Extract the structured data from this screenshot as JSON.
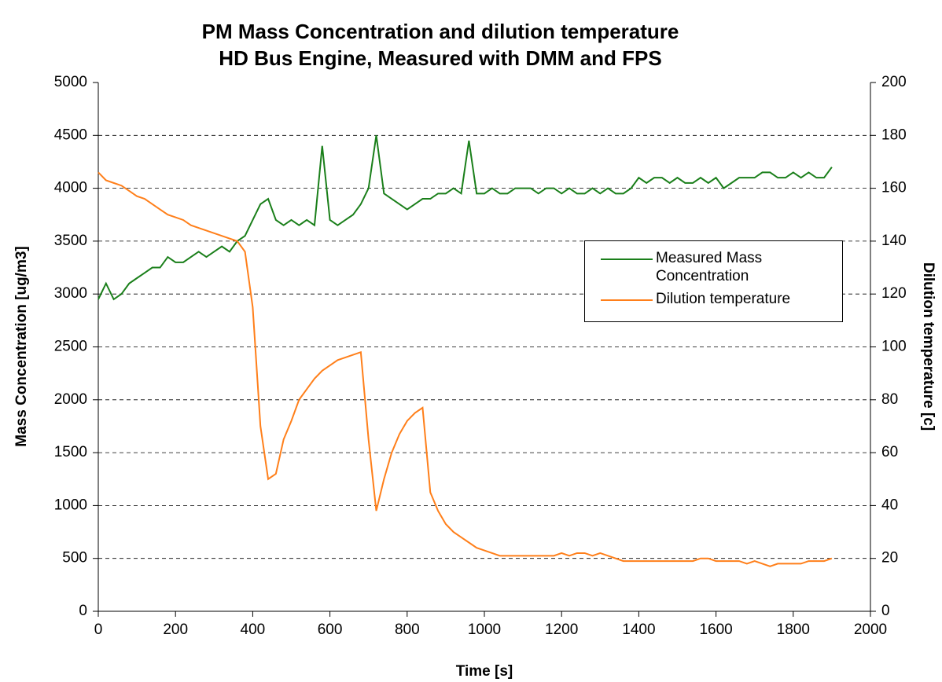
{
  "chart_data": {
    "type": "line",
    "title": "PM Mass Concentration and dilution temperature",
    "subtitle": "HD Bus Engine, Measured with DMM and FPS",
    "xlabel": "Time [s]",
    "ylabel": "Mass Concentration [ug/m3]",
    "y2label": "Dilution temperature [c]",
    "x": [
      0,
      20,
      40,
      60,
      80,
      100,
      120,
      140,
      160,
      180,
      200,
      220,
      240,
      260,
      280,
      300,
      320,
      340,
      360,
      380,
      400,
      420,
      440,
      460,
      480,
      500,
      520,
      540,
      560,
      580,
      600,
      620,
      640,
      660,
      680,
      700,
      720,
      740,
      760,
      780,
      800,
      820,
      840,
      860,
      880,
      900,
      920,
      940,
      960,
      980,
      1000,
      1020,
      1040,
      1060,
      1080,
      1100,
      1120,
      1140,
      1160,
      1180,
      1200,
      1220,
      1240,
      1260,
      1280,
      1300,
      1320,
      1340,
      1360,
      1380,
      1400,
      1420,
      1440,
      1460,
      1480,
      1500,
      1520,
      1540,
      1560,
      1580,
      1600,
      1620,
      1640,
      1660,
      1680,
      1700,
      1720,
      1740,
      1760,
      1780,
      1800,
      1820,
      1840,
      1860,
      1880,
      1900
    ],
    "series": [
      {
        "name": "Measured Mass Concentration",
        "color": "#1a7f1a",
        "values": [
          2950,
          3100,
          2950,
          3000,
          3100,
          3150,
          3200,
          3250,
          3250,
          3350,
          3300,
          3300,
          3350,
          3400,
          3350,
          3400,
          3450,
          3400,
          3500,
          3550,
          3700,
          3850,
          3900,
          3700,
          3650,
          3700,
          3650,
          3700,
          3650,
          4400,
          3700,
          3650,
          3700,
          3750,
          3850,
          4000,
          4500,
          3950,
          3900,
          3850,
          3800,
          3850,
          3900,
          3900,
          3950,
          3950,
          4000,
          3950,
          4450,
          3950,
          3950,
          4000,
          3950,
          3950,
          4000,
          4000,
          4000,
          3950,
          4000,
          4000,
          3950,
          4000,
          3950,
          3950,
          4000,
          3950,
          4000,
          3950,
          3950,
          4000,
          4100,
          4050,
          4100,
          4100,
          4050,
          4100,
          4050,
          4050,
          4100,
          4050,
          4100,
          4000,
          4050,
          4100,
          4100,
          4100,
          4150,
          4150,
          4100,
          4100,
          4150,
          4100,
          4150,
          4100,
          4100,
          4200
        ]
      },
      {
        "name": "Dilution temperature",
        "color": "#ff7f1a",
        "axis": "y2",
        "values": [
          166,
          163,
          162,
          161,
          159,
          157,
          156,
          154,
          152,
          150,
          149,
          148,
          146,
          145,
          144,
          143,
          142,
          141,
          140,
          136,
          115,
          70,
          50,
          52,
          65,
          72,
          80,
          84,
          88,
          91,
          93,
          95,
          96,
          97,
          98,
          65,
          38,
          50,
          60,
          67,
          72,
          75,
          77,
          45,
          38,
          33,
          30,
          28,
          26,
          24,
          23,
          22,
          21,
          21,
          21,
          21,
          21,
          21,
          21,
          21,
          22,
          21,
          22,
          22,
          21,
          22,
          21,
          20,
          19,
          19,
          19,
          19,
          19,
          19,
          19,
          19,
          19,
          19,
          20,
          20,
          19,
          19,
          19,
          19,
          18,
          19,
          18,
          17,
          18,
          18,
          18,
          18,
          19,
          19,
          19,
          20
        ]
      }
    ],
    "xlim": [
      0,
      2000
    ],
    "xticks": [
      0,
      200,
      400,
      600,
      800,
      1000,
      1200,
      1400,
      1600,
      1800,
      2000
    ],
    "ylim": [
      0,
      5000
    ],
    "yticks": [
      0,
      500,
      1000,
      1500,
      2000,
      2500,
      3000,
      3500,
      4000,
      4500,
      5000
    ],
    "y2lim": [
      0,
      200
    ],
    "y2ticks": [
      0,
      20,
      40,
      60,
      80,
      100,
      120,
      140,
      160,
      180,
      200
    ],
    "grid": true,
    "legend": "right"
  }
}
